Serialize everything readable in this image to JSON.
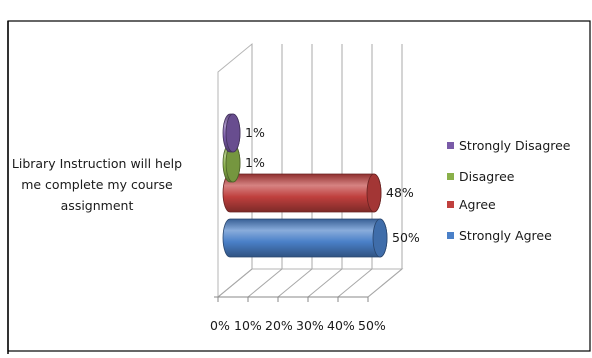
{
  "chart_data": {
    "type": "bar",
    "orientation": "horizontal",
    "style": "3d-cylinder",
    "categories": [
      "Library Instruction will help me complete my course assignment"
    ],
    "category_lines": [
      "Library Instruction will help",
      "me complete my course",
      "assignment"
    ],
    "series": [
      {
        "name": "Strongly Disagree",
        "values": [
          1
        ],
        "label": "1%",
        "color": "#7a5ba8"
      },
      {
        "name": "Disagree",
        "values": [
          1
        ],
        "label": "1%",
        "color": "#8ab04a"
      },
      {
        "name": "Agree",
        "values": [
          48
        ],
        "label": "48%",
        "color": "#c0403e"
      },
      {
        "name": "Strongly Agree",
        "values": [
          50
        ],
        "label": "50%",
        "color": "#4a80c8"
      }
    ],
    "xlim": [
      0,
      50
    ],
    "xticks": [
      "0%",
      "10%",
      "20%",
      "30%",
      "40%",
      "50%"
    ],
    "grid": true,
    "legend": "right",
    "title": "",
    "xlabel": "",
    "ylabel": ""
  }
}
